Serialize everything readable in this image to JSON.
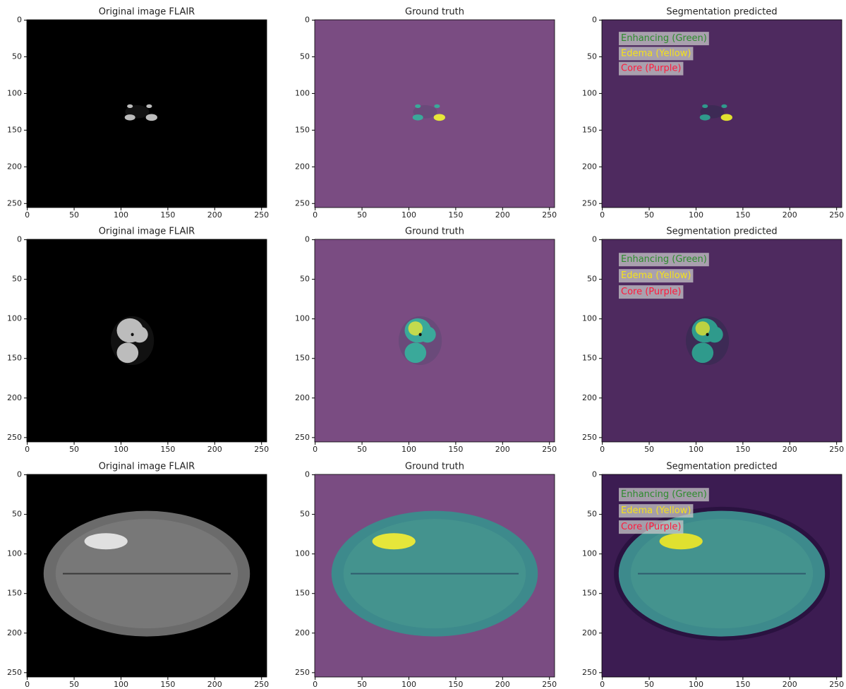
{
  "chart_data": [
    {
      "type": "image",
      "title": "Original image FLAIR",
      "xlim": [
        -0.5,
        255.5
      ],
      "ylim": [
        255.5,
        -0.5
      ],
      "xticks": [
        0,
        50,
        100,
        150,
        200,
        250
      ],
      "yticks": [
        0,
        50,
        100,
        150,
        200,
        250
      ]
    },
    {
      "type": "image",
      "title": "Ground truth",
      "xlim": [
        -0.5,
        255.5
      ],
      "ylim": [
        255.5,
        -0.5
      ],
      "xticks": [
        0,
        50,
        100,
        150,
        200,
        250
      ],
      "yticks": [
        0,
        50,
        100,
        150,
        200,
        250
      ]
    },
    {
      "type": "image",
      "title": "Segmentation predicted",
      "xlim": [
        -0.5,
        255.5
      ],
      "ylim": [
        255.5,
        -0.5
      ],
      "xticks": [
        0,
        50,
        100,
        150,
        200,
        250
      ],
      "yticks": [
        0,
        50,
        100,
        150,
        200,
        250
      ],
      "legend": [
        {
          "text": "Enhancing (Green)",
          "color": "#2e8b2e"
        },
        {
          "text": "Edema (Yellow)",
          "color": "#f5e21a"
        },
        {
          "text": "Core (Purple)",
          "color": "#ff1a3c"
        }
      ]
    },
    {
      "type": "image",
      "title": "Original image FLAIR",
      "xlim": [
        -0.5,
        255.5
      ],
      "ylim": [
        255.5,
        -0.5
      ],
      "xticks": [
        0,
        50,
        100,
        150,
        200,
        250
      ],
      "yticks": [
        0,
        50,
        100,
        150,
        200,
        250
      ]
    },
    {
      "type": "image",
      "title": "Ground truth",
      "xlim": [
        -0.5,
        255.5
      ],
      "ylim": [
        255.5,
        -0.5
      ],
      "xticks": [
        0,
        50,
        100,
        150,
        200,
        250
      ],
      "yticks": [
        0,
        50,
        100,
        150,
        200,
        250
      ]
    },
    {
      "type": "image",
      "title": "Segmentation predicted",
      "xlim": [
        -0.5,
        255.5
      ],
      "ylim": [
        255.5,
        -0.5
      ],
      "xticks": [
        0,
        50,
        100,
        150,
        200,
        250
      ],
      "yticks": [
        0,
        50,
        100,
        150,
        200,
        250
      ],
      "legend": [
        {
          "text": "Enhancing (Green)",
          "color": "#2e8b2e"
        },
        {
          "text": "Edema (Yellow)",
          "color": "#f5e21a"
        },
        {
          "text": "Core (Purple)",
          "color": "#ff1a3c"
        }
      ]
    },
    {
      "type": "image",
      "title": "Original image FLAIR",
      "xlim": [
        -0.5,
        255.5
      ],
      "ylim": [
        255.5,
        -0.5
      ],
      "xticks": [
        0,
        50,
        100,
        150,
        200,
        250
      ],
      "yticks": [
        0,
        50,
        100,
        150,
        200,
        250
      ]
    },
    {
      "type": "image",
      "title": "Ground truth",
      "xlim": [
        -0.5,
        255.5
      ],
      "ylim": [
        255.5,
        -0.5
      ],
      "xticks": [
        0,
        50,
        100,
        150,
        200,
        250
      ],
      "yticks": [
        0,
        50,
        100,
        150,
        200,
        250
      ]
    },
    {
      "type": "image",
      "title": "Segmentation predicted",
      "xlim": [
        -0.5,
        255.5
      ],
      "ylim": [
        255.5,
        -0.5
      ],
      "xticks": [
        0,
        50,
        100,
        150,
        200,
        250
      ],
      "yticks": [
        0,
        50,
        100,
        150,
        200,
        250
      ],
      "legend": [
        {
          "text": "Enhancing (Green)",
          "color": "#2e8b2e"
        },
        {
          "text": "Edema (Yellow)",
          "color": "#f5e21a"
        },
        {
          "text": "Core (Purple)",
          "color": "#ff1a3c"
        }
      ]
    }
  ]
}
